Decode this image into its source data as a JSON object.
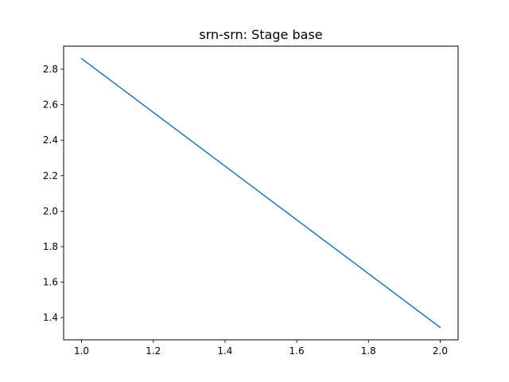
{
  "chart_data": {
    "type": "line",
    "title": "srn-srn: Stage base",
    "xlabel": "",
    "ylabel": "",
    "xlim": [
      0.95,
      2.05
    ],
    "ylim": [
      1.275,
      2.93
    ],
    "xticks": [
      1.0,
      1.2,
      1.4,
      1.6,
      1.8,
      2.0
    ],
    "xtick_labels": [
      "1.0",
      "1.2",
      "1.4",
      "1.6",
      "1.8",
      "2.0"
    ],
    "yticks": [
      1.4,
      1.6,
      1.8,
      2.0,
      2.2,
      2.4,
      2.6,
      2.8
    ],
    "ytick_labels": [
      "1.4",
      "1.6",
      "1.8",
      "2.0",
      "2.2",
      "2.4",
      "2.6",
      "2.8"
    ],
    "grid": false,
    "legend": "none",
    "series": [
      {
        "x": [
          1.0,
          2.0
        ],
        "y": [
          2.86,
          1.345
        ],
        "color": "#1f77b4"
      }
    ]
  }
}
